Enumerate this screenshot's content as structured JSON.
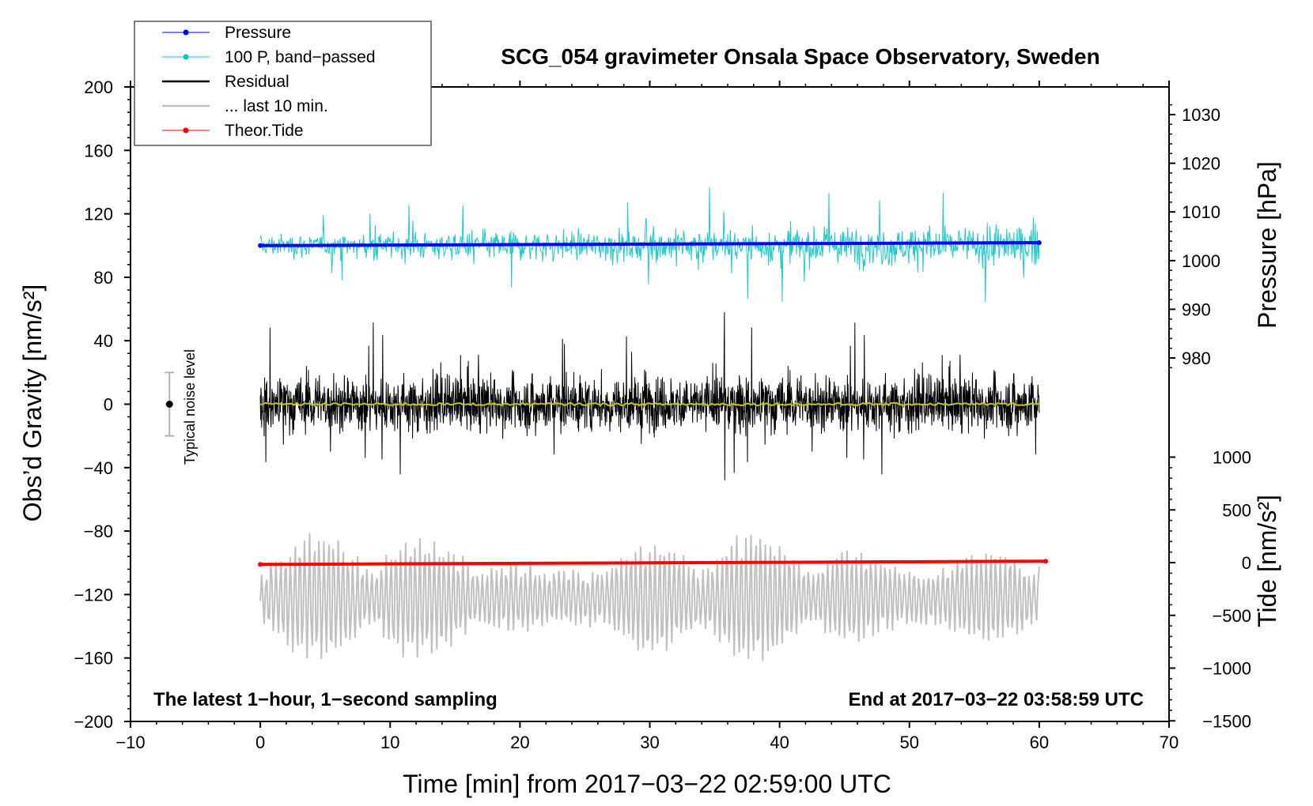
{
  "chart_data": {
    "type": "line",
    "title": "SCG_054 gravimeter Onsala Space Observatory, Sweden",
    "xlabel": "Time [min] from 2017−03−22 02:59:00 UTC",
    "ylabel_left": "Obs’d Gravity [nm/s²]",
    "ylabel_pressure": "Pressure [hPa]",
    "ylabel_tide": "Tide [nm/s²]",
    "xlim": [
      -10,
      70
    ],
    "ylim_left": [
      -200,
      200
    ],
    "xticks": [
      -10,
      0,
      10,
      20,
      30,
      40,
      50,
      60,
      70
    ],
    "xtick_labels": [
      "−10",
      "0",
      "10",
      "20",
      "30",
      "40",
      "50",
      "60",
      "70"
    ],
    "yticks_left": [
      -200,
      -160,
      -120,
      -80,
      -40,
      0,
      40,
      80,
      120,
      160,
      200
    ],
    "ytick_labels_left": [
      "−200",
      "−160",
      "−120",
      "−80",
      "−40",
      "0",
      "40",
      "80",
      "120",
      "160",
      "200"
    ],
    "pressure_ticks": [
      980,
      990,
      1000,
      1010,
      1020,
      1030
    ],
    "pressure_tick_labels": [
      "980",
      "990",
      "1000",
      "1010",
      "1020",
      "1030"
    ],
    "tide_ticks": [
      -1500,
      -1000,
      -500,
      0,
      500,
      1000
    ],
    "tide_tick_labels": [
      "−1500",
      "−1000",
      "−500",
      "0",
      "500",
      "1000"
    ],
    "annotation_left": "The latest 1−hour, 1−second sampling",
    "annotation_right": "End at 2017−03−22 03:58:59 UTC",
    "noise_label": "Typical noise level",
    "noise_bar": {
      "x": -7,
      "center": 0,
      "half_range": 20
    },
    "legend": [
      {
        "label": "Pressure",
        "color": "#0000ff",
        "marker": true
      },
      {
        "label": "100 P, band−passed",
        "color": "#00c8c8",
        "marker": true
      },
      {
        "label": "Residual",
        "color": "#000000",
        "marker": false
      },
      {
        "label": "... last 10 min.",
        "color": "#c0c0c0",
        "marker": false
      },
      {
        "label": "Theor.Tide",
        "color": "#ff0000",
        "marker": true
      }
    ],
    "series": [
      {
        "name": "Pressure",
        "color": "#0000ff",
        "axis": "left",
        "x": [
          0,
          20,
          40,
          60
        ],
        "values": [
          100,
          100.6,
          101.2,
          101.8
        ]
      },
      {
        "name": "100 P, band−passed",
        "color": "#20c8c8",
        "axis": "left",
        "x_range": [
          0,
          60
        ],
        "center": 100,
        "amplitude_range": [
          -47,
          40
        ]
      },
      {
        "name": "Residual",
        "color": "#000000",
        "axis": "left",
        "x_range": [
          0,
          60
        ],
        "center": 0,
        "amplitude_range": [
          -48,
          58
        ]
      },
      {
        "name": "Residual smoothed",
        "color": "#c8c800",
        "axis": "left",
        "x_range": [
          0,
          60
        ],
        "values_constant": 0
      },
      {
        "name": "... last 10 min.",
        "color": "#c0c0c0",
        "axis": "left",
        "x_range": [
          0,
          60
        ],
        "center": -122,
        "amplitude_range": [
          -40,
          45
        ]
      },
      {
        "name": "Theor.Tide",
        "color": "#ff0000",
        "axis": "left",
        "x": [
          0,
          60.5
        ],
        "values": [
          -101,
          -99
        ]
      }
    ]
  }
}
